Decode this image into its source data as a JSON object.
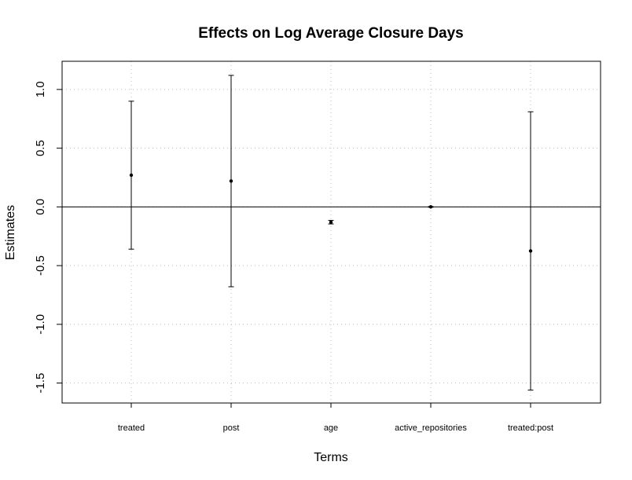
{
  "chart_data": {
    "type": "scatter",
    "title": "Effects on Log Average Closure Days",
    "xlabel": "Terms",
    "ylabel": "Estimates",
    "categories": [
      "treated",
      "post",
      "age",
      "active_repositories",
      "treated:post"
    ],
    "series": [
      {
        "values": [
          0.27,
          0.22,
          -0.13,
          0.0,
          -0.375
        ],
        "lower": [
          -0.36,
          -0.68,
          -0.145,
          -0.003,
          -1.56
        ],
        "upper": [
          0.9,
          1.12,
          -0.115,
          0.003,
          0.81
        ]
      }
    ],
    "ylim": [
      -1.67,
      1.24
    ],
    "yticks": [
      -1.5,
      -1.0,
      -0.5,
      0.0,
      0.5,
      1.0
    ],
    "ytick_labels": [
      "-1.5",
      "-1.0",
      "-0.5",
      "0.0",
      "0.5",
      "1.0"
    ],
    "reference_line": 0,
    "grid": true,
    "colors": {
      "points": "#000000",
      "grid": "#bbbbbb",
      "axis": "#000000"
    }
  }
}
